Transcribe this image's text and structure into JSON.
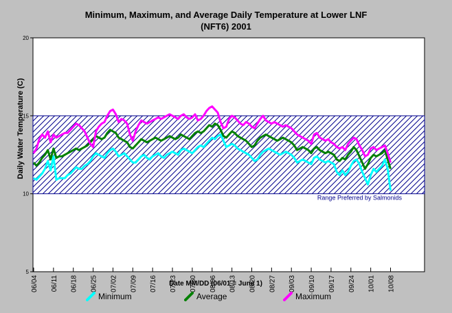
{
  "chart_data": {
    "type": "line",
    "title": "Minimum, Maximum, and Average Daily Temperature at Lower LNF",
    "subtitle": "(NFT6) 2001",
    "xlabel": "Date MM/DD (06/01 = June 1)",
    "ylabel": "Daily Water Temperature (C)",
    "ylim": [
      5,
      20
    ],
    "yticks": [
      5,
      10,
      15,
      20
    ],
    "xlim": [
      "06/04",
      "10/20"
    ],
    "xticks": [
      "06/04",
      "06/11",
      "06/18",
      "06/25",
      "07/02",
      "07/09",
      "07/16",
      "07/23",
      "07/30",
      "08/06",
      "08/13",
      "08/20",
      "08/27",
      "09/03",
      "09/10",
      "09/17",
      "09/24",
      "10/01",
      "10/08"
    ],
    "grid": false,
    "legend_position": "bottom",
    "band": {
      "low": 10,
      "high": 15,
      "label": "Range Preferred by Salmonids",
      "color": "#00008b"
    },
    "x": [
      "06/04",
      "06/05",
      "06/06",
      "06/07",
      "06/08",
      "06/09",
      "06/10",
      "06/11",
      "06/12",
      "06/13",
      "06/14",
      "06/15",
      "06/16",
      "06/17",
      "06/18",
      "06/19",
      "06/20",
      "06/21",
      "06/22",
      "06/23",
      "06/24",
      "06/25",
      "06/26",
      "06/27",
      "06/28",
      "06/29",
      "06/30",
      "07/01",
      "07/02",
      "07/03",
      "07/04",
      "07/05",
      "07/06",
      "07/07",
      "07/08",
      "07/09",
      "07/10",
      "07/11",
      "07/12",
      "07/13",
      "07/14",
      "07/15",
      "07/16",
      "07/17",
      "07/18",
      "07/19",
      "07/20",
      "07/21",
      "07/22",
      "07/23",
      "07/24",
      "07/25",
      "07/26",
      "07/27",
      "07/28",
      "07/29",
      "07/30",
      "07/31",
      "08/01",
      "08/02",
      "08/03",
      "08/04",
      "08/05",
      "08/06",
      "08/07",
      "08/08",
      "08/09",
      "08/10",
      "08/11",
      "08/12",
      "08/13",
      "08/14",
      "08/15",
      "08/16",
      "08/17",
      "08/18",
      "08/19",
      "08/20",
      "08/21",
      "08/22",
      "08/23",
      "08/24",
      "08/25",
      "08/26",
      "08/27",
      "08/28",
      "08/29",
      "08/30",
      "08/31",
      "09/01",
      "09/02",
      "09/03",
      "09/04",
      "09/05",
      "09/06",
      "09/07",
      "09/08",
      "09/09",
      "09/10",
      "09/11",
      "09/12",
      "09/13",
      "09/14",
      "09/15",
      "09/16",
      "09/17",
      "09/18",
      "09/19",
      "09/20",
      "09/21",
      "09/22",
      "09/23",
      "09/24",
      "09/25",
      "09/26",
      "09/27",
      "09/28",
      "09/29",
      "09/30",
      "10/01",
      "10/02",
      "10/03",
      "10/04",
      "10/05",
      "10/06",
      "10/07",
      "10/08"
    ],
    "series": [
      {
        "name": "Minimum",
        "color": "#00ffff",
        "values": [
          11.0,
          10.9,
          11.1,
          11.3,
          11.6,
          12.1,
          11.5,
          12.4,
          10.9,
          11.0,
          11.0,
          11.0,
          11.2,
          11.3,
          11.5,
          11.7,
          11.6,
          11.6,
          11.8,
          11.9,
          12.1,
          12.4,
          12.6,
          12.5,
          12.4,
          12.3,
          12.6,
          12.8,
          12.9,
          12.7,
          12.4,
          12.5,
          12.6,
          12.4,
          12.2,
          12.0,
          12.0,
          12.2,
          12.4,
          12.5,
          12.3,
          12.2,
          12.4,
          12.5,
          12.6,
          12.4,
          12.3,
          12.5,
          12.6,
          12.7,
          12.6,
          12.5,
          12.8,
          12.9,
          12.8,
          12.7,
          12.6,
          12.8,
          13.0,
          13.1,
          13.0,
          13.2,
          13.4,
          13.6,
          13.5,
          13.7,
          13.8,
          13.4,
          13.0,
          13.1,
          13.2,
          13.1,
          12.9,
          12.8,
          12.7,
          12.6,
          12.5,
          12.3,
          12.1,
          12.2,
          12.5,
          12.7,
          12.8,
          12.9,
          12.8,
          12.7,
          12.6,
          12.5,
          12.6,
          12.7,
          12.6,
          12.5,
          12.3,
          12.0,
          12.1,
          12.2,
          12.1,
          12.0,
          11.9,
          12.3,
          12.4,
          12.2,
          12.1,
          12.0,
          12.1,
          12.0,
          11.9,
          11.4,
          11.2,
          11.5,
          11.2,
          11.4,
          11.8,
          12.1,
          12.2,
          11.9,
          11.4,
          11.0,
          10.6,
          11.2,
          11.6,
          11.4,
          11.6,
          11.8,
          12.2,
          11.6,
          10.2
        ]
      },
      {
        "name": "Average",
        "color": "#008000",
        "values": [
          12.0,
          11.8,
          12.0,
          12.3,
          12.5,
          12.8,
          12.2,
          12.9,
          12.3,
          12.4,
          12.4,
          12.5,
          12.6,
          12.7,
          12.8,
          12.9,
          12.8,
          12.9,
          13.0,
          13.1,
          13.3,
          13.5,
          13.7,
          13.6,
          13.5,
          13.6,
          13.9,
          14.1,
          14.0,
          13.9,
          13.6,
          13.5,
          13.4,
          13.3,
          13.0,
          12.9,
          13.1,
          13.3,
          13.5,
          13.4,
          13.3,
          13.4,
          13.5,
          13.6,
          13.5,
          13.4,
          13.5,
          13.6,
          13.7,
          13.6,
          13.5,
          13.6,
          13.8,
          13.7,
          13.6,
          13.5,
          13.7,
          13.9,
          14.0,
          13.9,
          14.0,
          14.2,
          14.4,
          14.3,
          14.5,
          14.4,
          14.1,
          13.7,
          13.6,
          13.8,
          14.0,
          13.9,
          13.7,
          13.6,
          13.5,
          13.4,
          13.2,
          13.0,
          13.1,
          13.4,
          13.6,
          13.7,
          13.8,
          13.7,
          13.6,
          13.5,
          13.4,
          13.5,
          13.6,
          13.5,
          13.4,
          13.3,
          13.1,
          12.8,
          12.9,
          13.0,
          12.9,
          12.8,
          12.6,
          12.9,
          13.0,
          12.8,
          12.7,
          12.6,
          12.7,
          12.6,
          12.5,
          12.2,
          12.1,
          12.3,
          12.2,
          12.5,
          12.7,
          13.0,
          12.8,
          12.4,
          12.0,
          11.6,
          11.9,
          12.3,
          12.5,
          12.4,
          12.5,
          12.6,
          12.8,
          12.2,
          11.6
        ]
      },
      {
        "name": "Maximum",
        "color": "#ff00ff",
        "values": [
          12.6,
          12.9,
          13.5,
          13.8,
          13.6,
          14.0,
          13.3,
          13.8,
          13.6,
          13.7,
          13.8,
          13.9,
          13.9,
          14.1,
          14.3,
          14.5,
          14.4,
          14.2,
          14.0,
          13.6,
          13.2,
          13.0,
          14.0,
          14.3,
          14.5,
          14.6,
          15.0,
          15.3,
          15.4,
          15.1,
          14.6,
          14.8,
          14.7,
          14.5,
          13.8,
          13.4,
          14.0,
          14.4,
          14.7,
          14.6,
          14.5,
          14.6,
          14.7,
          14.8,
          14.9,
          14.8,
          14.9,
          15.0,
          15.1,
          15.0,
          14.9,
          14.8,
          15.0,
          15.1,
          14.9,
          14.8,
          14.9,
          15.1,
          14.7,
          14.8,
          15.0,
          15.3,
          15.5,
          15.6,
          15.4,
          15.2,
          14.6,
          14.2,
          14.3,
          14.8,
          15.0,
          14.9,
          14.7,
          14.5,
          14.4,
          14.6,
          14.5,
          14.3,
          14.2,
          14.5,
          14.8,
          15.0,
          14.7,
          14.6,
          14.5,
          14.6,
          14.5,
          14.4,
          14.3,
          14.4,
          14.3,
          14.2,
          14.0,
          13.8,
          13.7,
          13.6,
          13.5,
          13.4,
          13.2,
          13.8,
          13.9,
          13.6,
          13.5,
          13.4,
          13.5,
          13.3,
          13.2,
          13.0,
          12.9,
          13.0,
          12.8,
          13.2,
          13.4,
          13.6,
          13.5,
          13.1,
          12.8,
          12.4,
          12.5,
          12.9,
          13.0,
          12.8,
          12.9,
          13.0,
          13.1,
          12.6,
          12.0
        ]
      }
    ]
  }
}
